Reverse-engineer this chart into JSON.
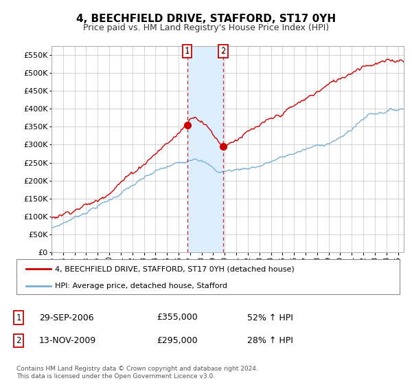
{
  "title": "4, BEECHFIELD DRIVE, STAFFORD, ST17 0YH",
  "subtitle": "Price paid vs. HM Land Registry's House Price Index (HPI)",
  "ylabel_ticks": [
    0,
    50000,
    100000,
    150000,
    200000,
    250000,
    300000,
    350000,
    400000,
    450000,
    500000,
    550000
  ],
  "ylim": [
    0,
    575000
  ],
  "xlim_start": 1995.0,
  "xlim_end": 2025.5,
  "purchase1_date": 2006.75,
  "purchase1_price": 355000,
  "purchase2_date": 2009.87,
  "purchase2_price": 295000,
  "legend_label_red": "4, BEECHFIELD DRIVE, STAFFORD, ST17 0YH (detached house)",
  "legend_label_blue": "HPI: Average price, detached house, Stafford",
  "footer": "Contains HM Land Registry data © Crown copyright and database right 2024.\nThis data is licensed under the Open Government Licence v3.0.",
  "red_color": "#cc0000",
  "blue_color": "#7ab0d4",
  "highlight_color": "#ddeeff",
  "grid_color": "#cccccc",
  "box_color": "#cc0000",
  "label1_box": "1",
  "label2_box": "2",
  "row1_date": "29-SEP-2006",
  "row1_price": "£355,000",
  "row1_hpi": "52% ↑ HPI",
  "row2_date": "13-NOV-2009",
  "row2_price": "£295,000",
  "row2_hpi": "28% ↑ HPI"
}
